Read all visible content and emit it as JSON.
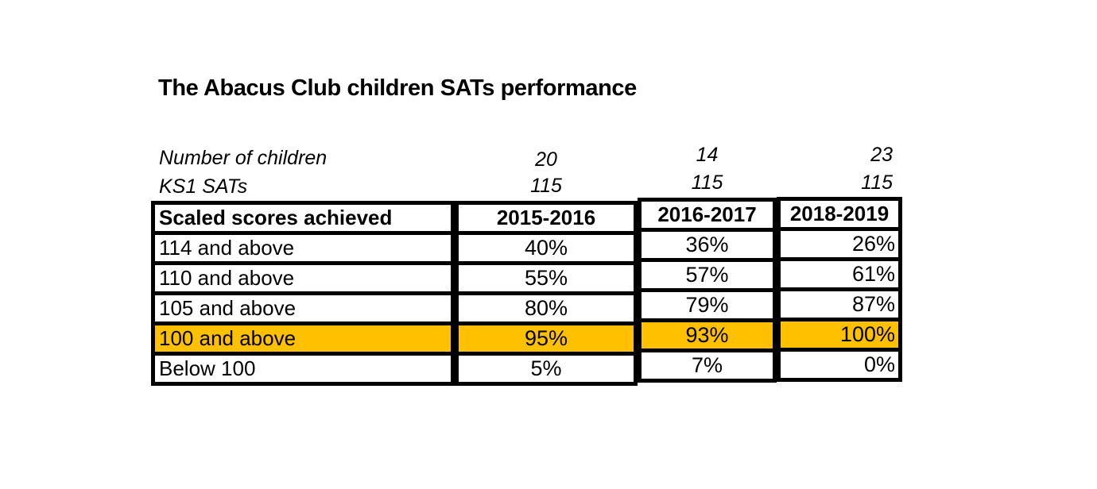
{
  "title": "The Abacus Club children SATs performance",
  "meta": {
    "rows": [
      {
        "label": "Number of children",
        "values": [
          "20",
          "14",
          "23"
        ]
      },
      {
        "label": "KS1 SATs",
        "values": [
          "115",
          "115",
          "115"
        ]
      }
    ]
  },
  "table": {
    "columns": [
      "Scaled scores achieved",
      "2015-2016",
      "2016-2017",
      "2018-2019"
    ],
    "rows": [
      {
        "label": "114 and above",
        "values": [
          "40%",
          "36%",
          "26%"
        ],
        "highlight": false
      },
      {
        "label": "110 and above",
        "values": [
          "55%",
          "57%",
          "61%"
        ],
        "highlight": false
      },
      {
        "label": "105 and above",
        "values": [
          "80%",
          "79%",
          "87%"
        ],
        "highlight": false
      },
      {
        "label": "100 and above",
        "values": [
          "95%",
          "93%",
          "100%"
        ],
        "highlight": true
      },
      {
        "label": "Below 100",
        "values": [
          "5%",
          "7%",
          "0%"
        ],
        "highlight": false
      }
    ]
  },
  "colors": {
    "highlight": "#FFC000",
    "border": "#000000",
    "background": "#FFFFFF",
    "text": "#000000"
  }
}
